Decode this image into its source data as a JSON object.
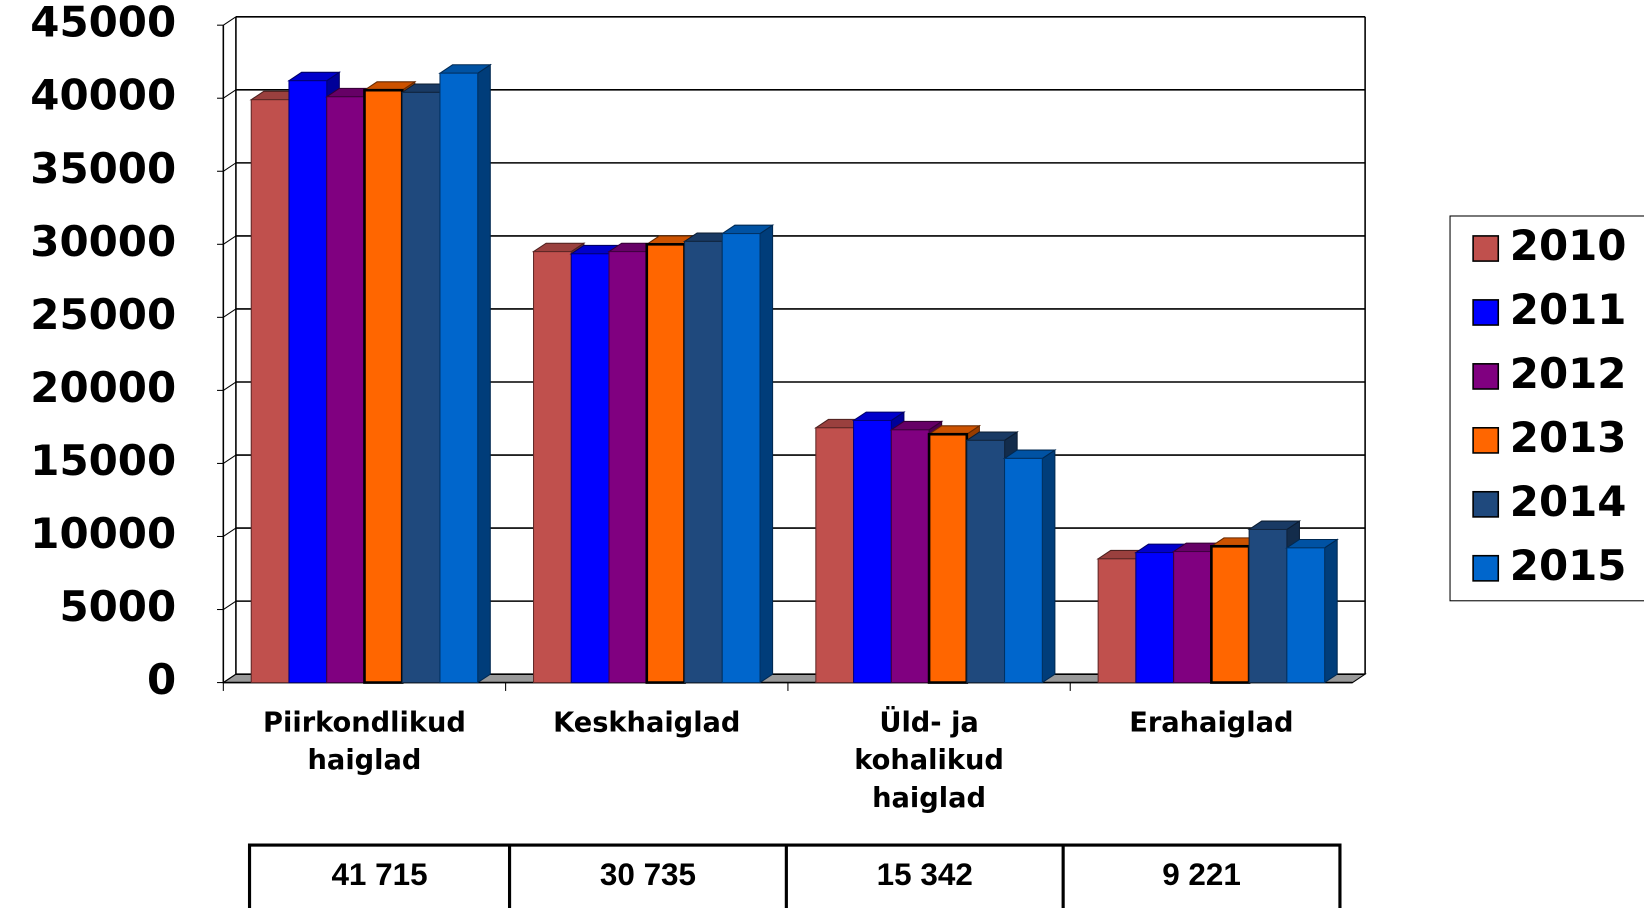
{
  "chart_data": {
    "type": "bar3d",
    "categories": [
      "Piirkondlikud\nhaiglad",
      "Keskhaiglad",
      "Üld- ja\nkohalikud\nhaiglad",
      "Erahaiglad"
    ],
    "series": [
      {
        "name": "2010",
        "color": "#c0504d",
        "values": [
          39900,
          29500,
          17440,
          8470
        ]
      },
      {
        "name": "2011",
        "color": "#0000ff",
        "values": [
          41200,
          29350,
          17940,
          8900
        ]
      },
      {
        "name": "2012",
        "color": "#800080",
        "values": [
          40100,
          29500,
          17300,
          8970
        ]
      },
      {
        "name": "2013",
        "color": "#ff6600",
        "values": [
          40550,
          30000,
          17000,
          9330
        ]
      },
      {
        "name": "2014",
        "color": "#1f497d",
        "values": [
          40400,
          30200,
          16580,
          10480
        ]
      },
      {
        "name": "2015",
        "color": "#0066cc",
        "values": [
          41715,
          30735,
          15342,
          9221
        ]
      }
    ],
    "ylim": [
      0,
      45000
    ],
    "yticks": [
      0,
      5000,
      10000,
      15000,
      20000,
      25000,
      30000,
      35000,
      40000,
      45000
    ],
    "grid": true,
    "legend": "right",
    "table": [
      "41 715",
      "30 735",
      "15 342",
      "9 221"
    ]
  }
}
